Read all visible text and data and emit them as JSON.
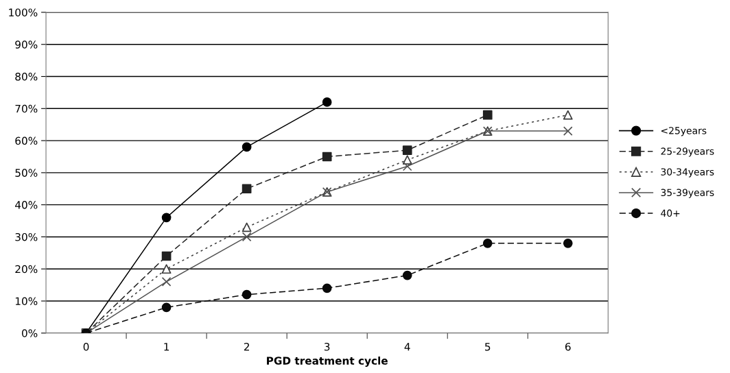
{
  "chart_data": {
    "type": "line",
    "xlabel": "PGD treatment cycle",
    "categories": [
      "0",
      "1",
      "2",
      "3",
      "4",
      "5",
      "6"
    ],
    "series": [
      {
        "name": "<25years",
        "color": "#000000",
        "marker": "circle",
        "line_style": "solid",
        "values": [
          0,
          36,
          58,
          72,
          null,
          null,
          null
        ]
      },
      {
        "name": "25-29years",
        "color": "#222222",
        "marker": "square",
        "line_style": "dashed",
        "values": [
          0,
          24,
          45,
          55,
          57,
          68,
          null
        ]
      },
      {
        "name": "30-34years",
        "color": "#3a3a3a",
        "marker": "triangle",
        "line_style": "dotted",
        "values": [
          0,
          20,
          33,
          44,
          54,
          63,
          68
        ]
      },
      {
        "name": "35-39years",
        "color": "#525252",
        "marker": "cross",
        "line_style": "solid",
        "values": [
          0,
          16,
          30,
          44,
          52,
          63,
          63
        ]
      },
      {
        "name": "40+",
        "color": "#0a0a0a",
        "marker": "circle",
        "line_style": "dashed",
        "values": [
          0,
          8,
          12,
          14,
          18,
          28,
          28
        ]
      }
    ],
    "ylim": [
      0,
      100
    ],
    "yticks": [
      {
        "value": 0,
        "label": "0%"
      },
      {
        "value": 10,
        "label": "10%"
      },
      {
        "value": 20,
        "label": "20%"
      },
      {
        "value": 30,
        "label": "30%"
      },
      {
        "value": 40,
        "label": "40%"
      },
      {
        "value": 50,
        "label": "50%"
      },
      {
        "value": 60,
        "label": "60%"
      },
      {
        "value": 70,
        "label": "70%"
      },
      {
        "value": 80,
        "label": "80%"
      },
      {
        "value": 90,
        "label": "90%"
      },
      {
        "value": 100,
        "label": "100%"
      }
    ],
    "grid": "y",
    "legend": "right"
  }
}
